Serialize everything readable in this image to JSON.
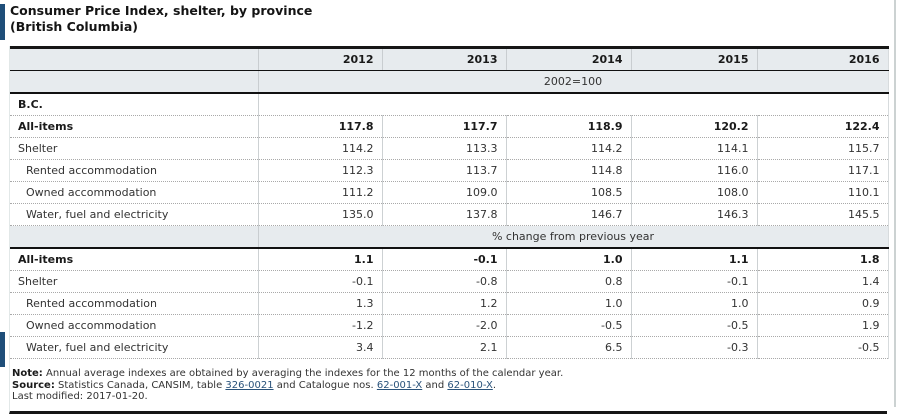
{
  "title": {
    "line1": "Consumer Price Index, shelter, by province",
    "line2": "(British Columbia)"
  },
  "table": {
    "years": [
      "2012",
      "2013",
      "2014",
      "2015",
      "2016"
    ],
    "region_label": "B.C.",
    "sections": [
      {
        "unit_label": "2002=100",
        "rows": [
          {
            "label": "All-items",
            "bold": true,
            "indent": 0,
            "values": [
              "117.8",
              "117.7",
              "118.9",
              "120.2",
              "122.4"
            ]
          },
          {
            "label": "Shelter",
            "bold": false,
            "indent": 0,
            "values": [
              "114.2",
              "113.3",
              "114.2",
              "114.1",
              "115.7"
            ]
          },
          {
            "label": "Rented accommodation",
            "bold": false,
            "indent": 1,
            "values": [
              "112.3",
              "113.7",
              "114.8",
              "116.0",
              "117.1"
            ]
          },
          {
            "label": "Owned accommodation",
            "bold": false,
            "indent": 1,
            "values": [
              "111.2",
              "109.0",
              "108.5",
              "108.0",
              "110.1"
            ]
          },
          {
            "label": "Water, fuel and electricity",
            "bold": false,
            "indent": 1,
            "values": [
              "135.0",
              "137.8",
              "146.7",
              "146.3",
              "145.5"
            ]
          }
        ]
      },
      {
        "unit_label": "% change from previous year",
        "rows": [
          {
            "label": "All-items",
            "bold": true,
            "indent": 0,
            "values": [
              "1.1",
              "-0.1",
              "1.0",
              "1.1",
              "1.8"
            ]
          },
          {
            "label": "Shelter",
            "bold": false,
            "indent": 0,
            "values": [
              "-0.1",
              "-0.8",
              "0.8",
              "-0.1",
              "1.4"
            ]
          },
          {
            "label": "Rented accommodation",
            "bold": false,
            "indent": 1,
            "values": [
              "1.3",
              "1.2",
              "1.0",
              "1.0",
              "0.9"
            ]
          },
          {
            "label": "Owned accommodation",
            "bold": false,
            "indent": 1,
            "values": [
              "-1.2",
              "-2.0",
              "-0.5",
              "-0.5",
              "1.9"
            ]
          },
          {
            "label": "Water, fuel and electricity",
            "bold": false,
            "indent": 1,
            "values": [
              "3.4",
              "2.1",
              "6.5",
              "-0.3",
              "-0.5"
            ]
          }
        ]
      }
    ]
  },
  "footer": {
    "note_label": "Note:",
    "note_text": " Annual average indexes are obtained by averaging the indexes for the 12 months of the calendar year.",
    "source_label": "Source:",
    "source_prefix": " Statistics Canada, CANSIM, table ",
    "source_link1": "326-0021",
    "source_mid1": " and Catalogue nos. ",
    "source_link2": "62-001-X",
    "source_mid2": " and ",
    "source_link3": "62-010-X",
    "source_suffix": ".",
    "last_modified": "Last modified: 2017-01-20."
  },
  "colors": {
    "accent_bar": "#1f4e79",
    "header_bg": "#e7ebee",
    "heavy_border": "#161616",
    "link": "#29527a"
  }
}
